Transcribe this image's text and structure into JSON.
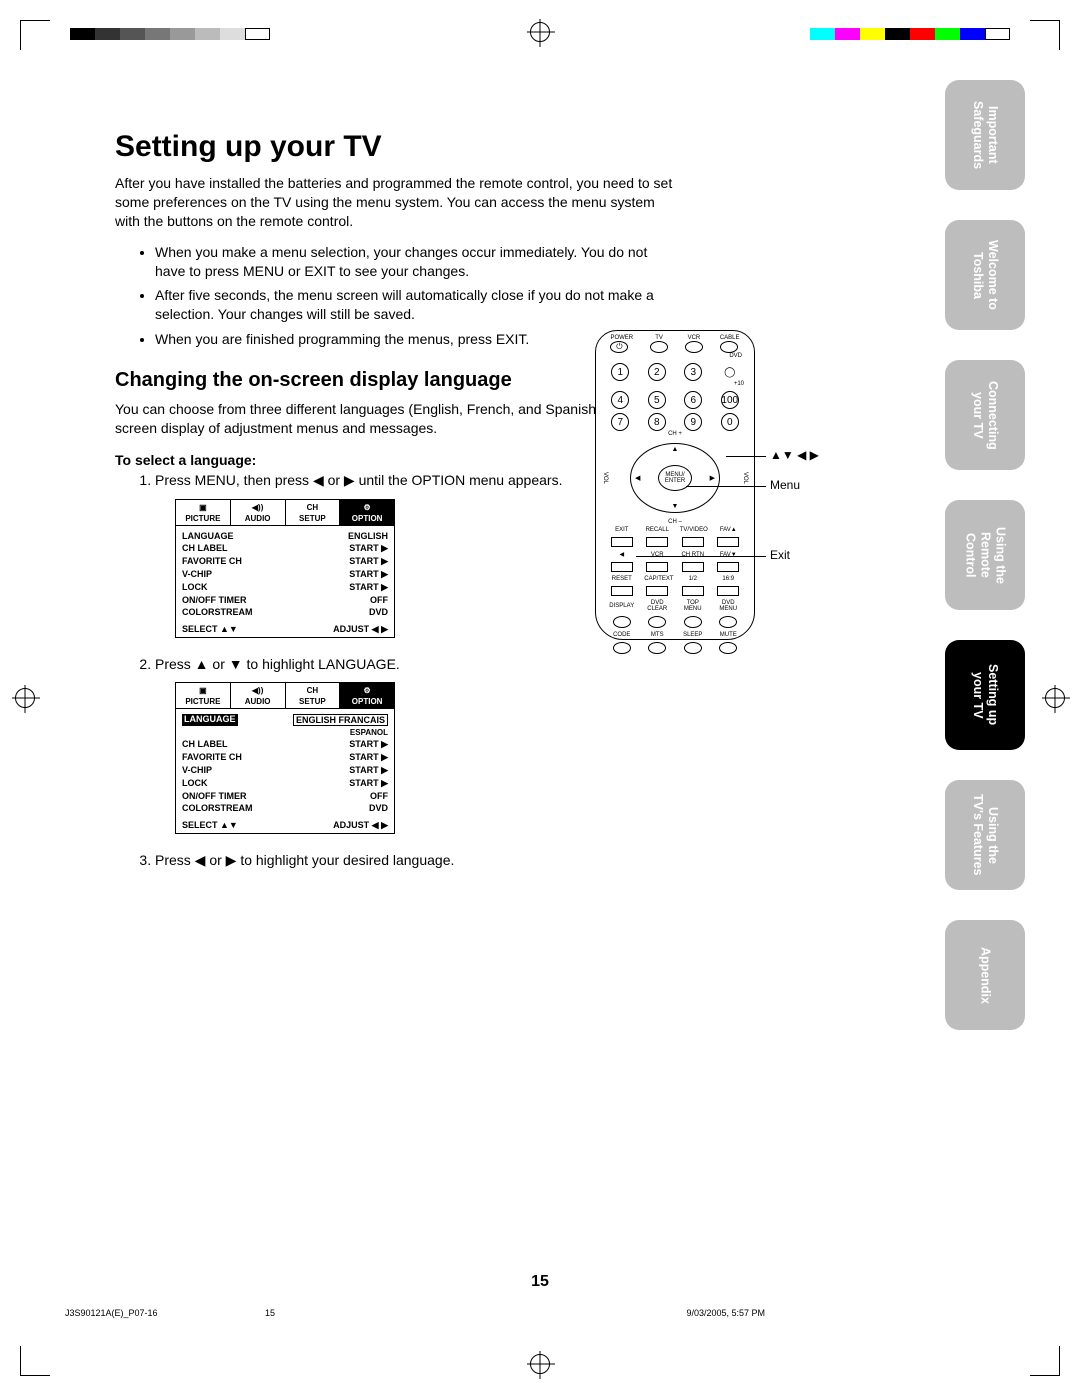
{
  "title": "Setting up your TV",
  "intro": "After you have installed the batteries and programmed the remote control, you need to set some preferences on the TV using the menu system. You can access the menu system with the buttons on the remote control.",
  "bullets": [
    "When you make a menu selection, your changes occur immediately. You do not have to press MENU or EXIT to see your changes.",
    "After five seconds, the menu screen will automatically close if you do not make a selection. Your changes will still be saved.",
    "When you are finished programming the menus, press EXIT."
  ],
  "section_heading": "Changing the on-screen display language",
  "section_para": "You can choose from three different languages (English, French, and Spanish) for the on-screen display of adjustment menus and messages.",
  "select_label": "To select a language:",
  "steps": {
    "s1": "Press MENU, then press ◀ or ▶ until the OPTION menu appears.",
    "s2": "Press ▲ or ▼ to highlight LANGUAGE.",
    "s3": "Press ◀ or ▶ to highlight your desired language."
  },
  "menu_tabs": [
    "PICTURE",
    "AUDIO",
    "SETUP",
    "OPTION"
  ],
  "menu_tab_icons": [
    "▣",
    "◀))",
    "CH",
    "⚙"
  ],
  "menu1_rows": [
    {
      "k": "LANGUAGE",
      "v": "ENGLISH"
    },
    {
      "k": "CH LABEL",
      "v": "START  ▶"
    },
    {
      "k": "FAVORITE CH",
      "v": "START  ▶"
    },
    {
      "k": "V-CHIP",
      "v": "START  ▶"
    },
    {
      "k": "LOCK",
      "v": "START  ▶"
    },
    {
      "k": "ON/OFF TIMER",
      "v": "OFF"
    },
    {
      "k": "COLORSTREAM",
      "v": "DVD"
    }
  ],
  "menu2_rows": [
    {
      "k": "LANGUAGE",
      "v": "ENGLISH FRANCAIS",
      "hl": true,
      "sub": "ESPANOL"
    },
    {
      "k": "CH LABEL",
      "v": "START  ▶"
    },
    {
      "k": "FAVORITE CH",
      "v": "START  ▶"
    },
    {
      "k": "V-CHIP",
      "v": "START  ▶"
    },
    {
      "k": "LOCK",
      "v": "START  ▶"
    },
    {
      "k": "ON/OFF TIMER",
      "v": "OFF"
    },
    {
      "k": "COLORSTREAM",
      "v": "DVD"
    }
  ],
  "menu_foot_l": "SELECT   ▲▼",
  "menu_foot_r": "ADJUST   ◀ ▶",
  "remote_top_labels": [
    "POWER",
    "TV",
    "VCR",
    "CABLE"
  ],
  "remote_dvd": "DVD",
  "remote_plus10": "+10",
  "remote_center": "MENU/\nENTER",
  "remote_chplus": "CH +",
  "remote_chminus": "CH –",
  "remote_vol": "VOL",
  "remote_row_exit": [
    "EXIT",
    "RECALL",
    "TV/VIDEO",
    "FAV▲"
  ],
  "remote_row_vcr": [
    "◀",
    "VCR",
    "▲",
    "CH RTN",
    "FAV▼"
  ],
  "remote_row_reset": [
    "RESET",
    "CAP/TEXT",
    "1/2",
    "16:9"
  ],
  "remote_row_disp": [
    "DISPLAY",
    "DVD CLEAR",
    "TOP MENU",
    "DVD MENU"
  ],
  "remote_row_code": [
    "CODE",
    "MTS",
    "SLEEP",
    "MUTE"
  ],
  "callout_arrows": "▲▼ ◀ ▶",
  "callout_menu": "Menu",
  "callout_exit": "Exit",
  "side_tabs": [
    "Important Safeguards",
    "Welcome to Toshiba",
    "Connecting your TV",
    "Using the Remote Control",
    "Setting up your TV",
    "Using the TV's Features",
    "Appendix"
  ],
  "side_tab_active_index": 4,
  "page_number": "15",
  "footer_file": "J3S90121A(E)_P07-16",
  "footer_pg": "15",
  "footer_date": "9/03/2005, 5:57 PM",
  "gray_swatches": [
    "#000000",
    "#333333",
    "#555555",
    "#777777",
    "#999999",
    "#bbbbbb",
    "#dddddd",
    "#ffffff"
  ],
  "color_swatches": [
    "#00ffff",
    "#ff00ff",
    "#ffff00",
    "#000000",
    "#ff0000",
    "#00ff00",
    "#0000ff",
    "#ffffff"
  ]
}
